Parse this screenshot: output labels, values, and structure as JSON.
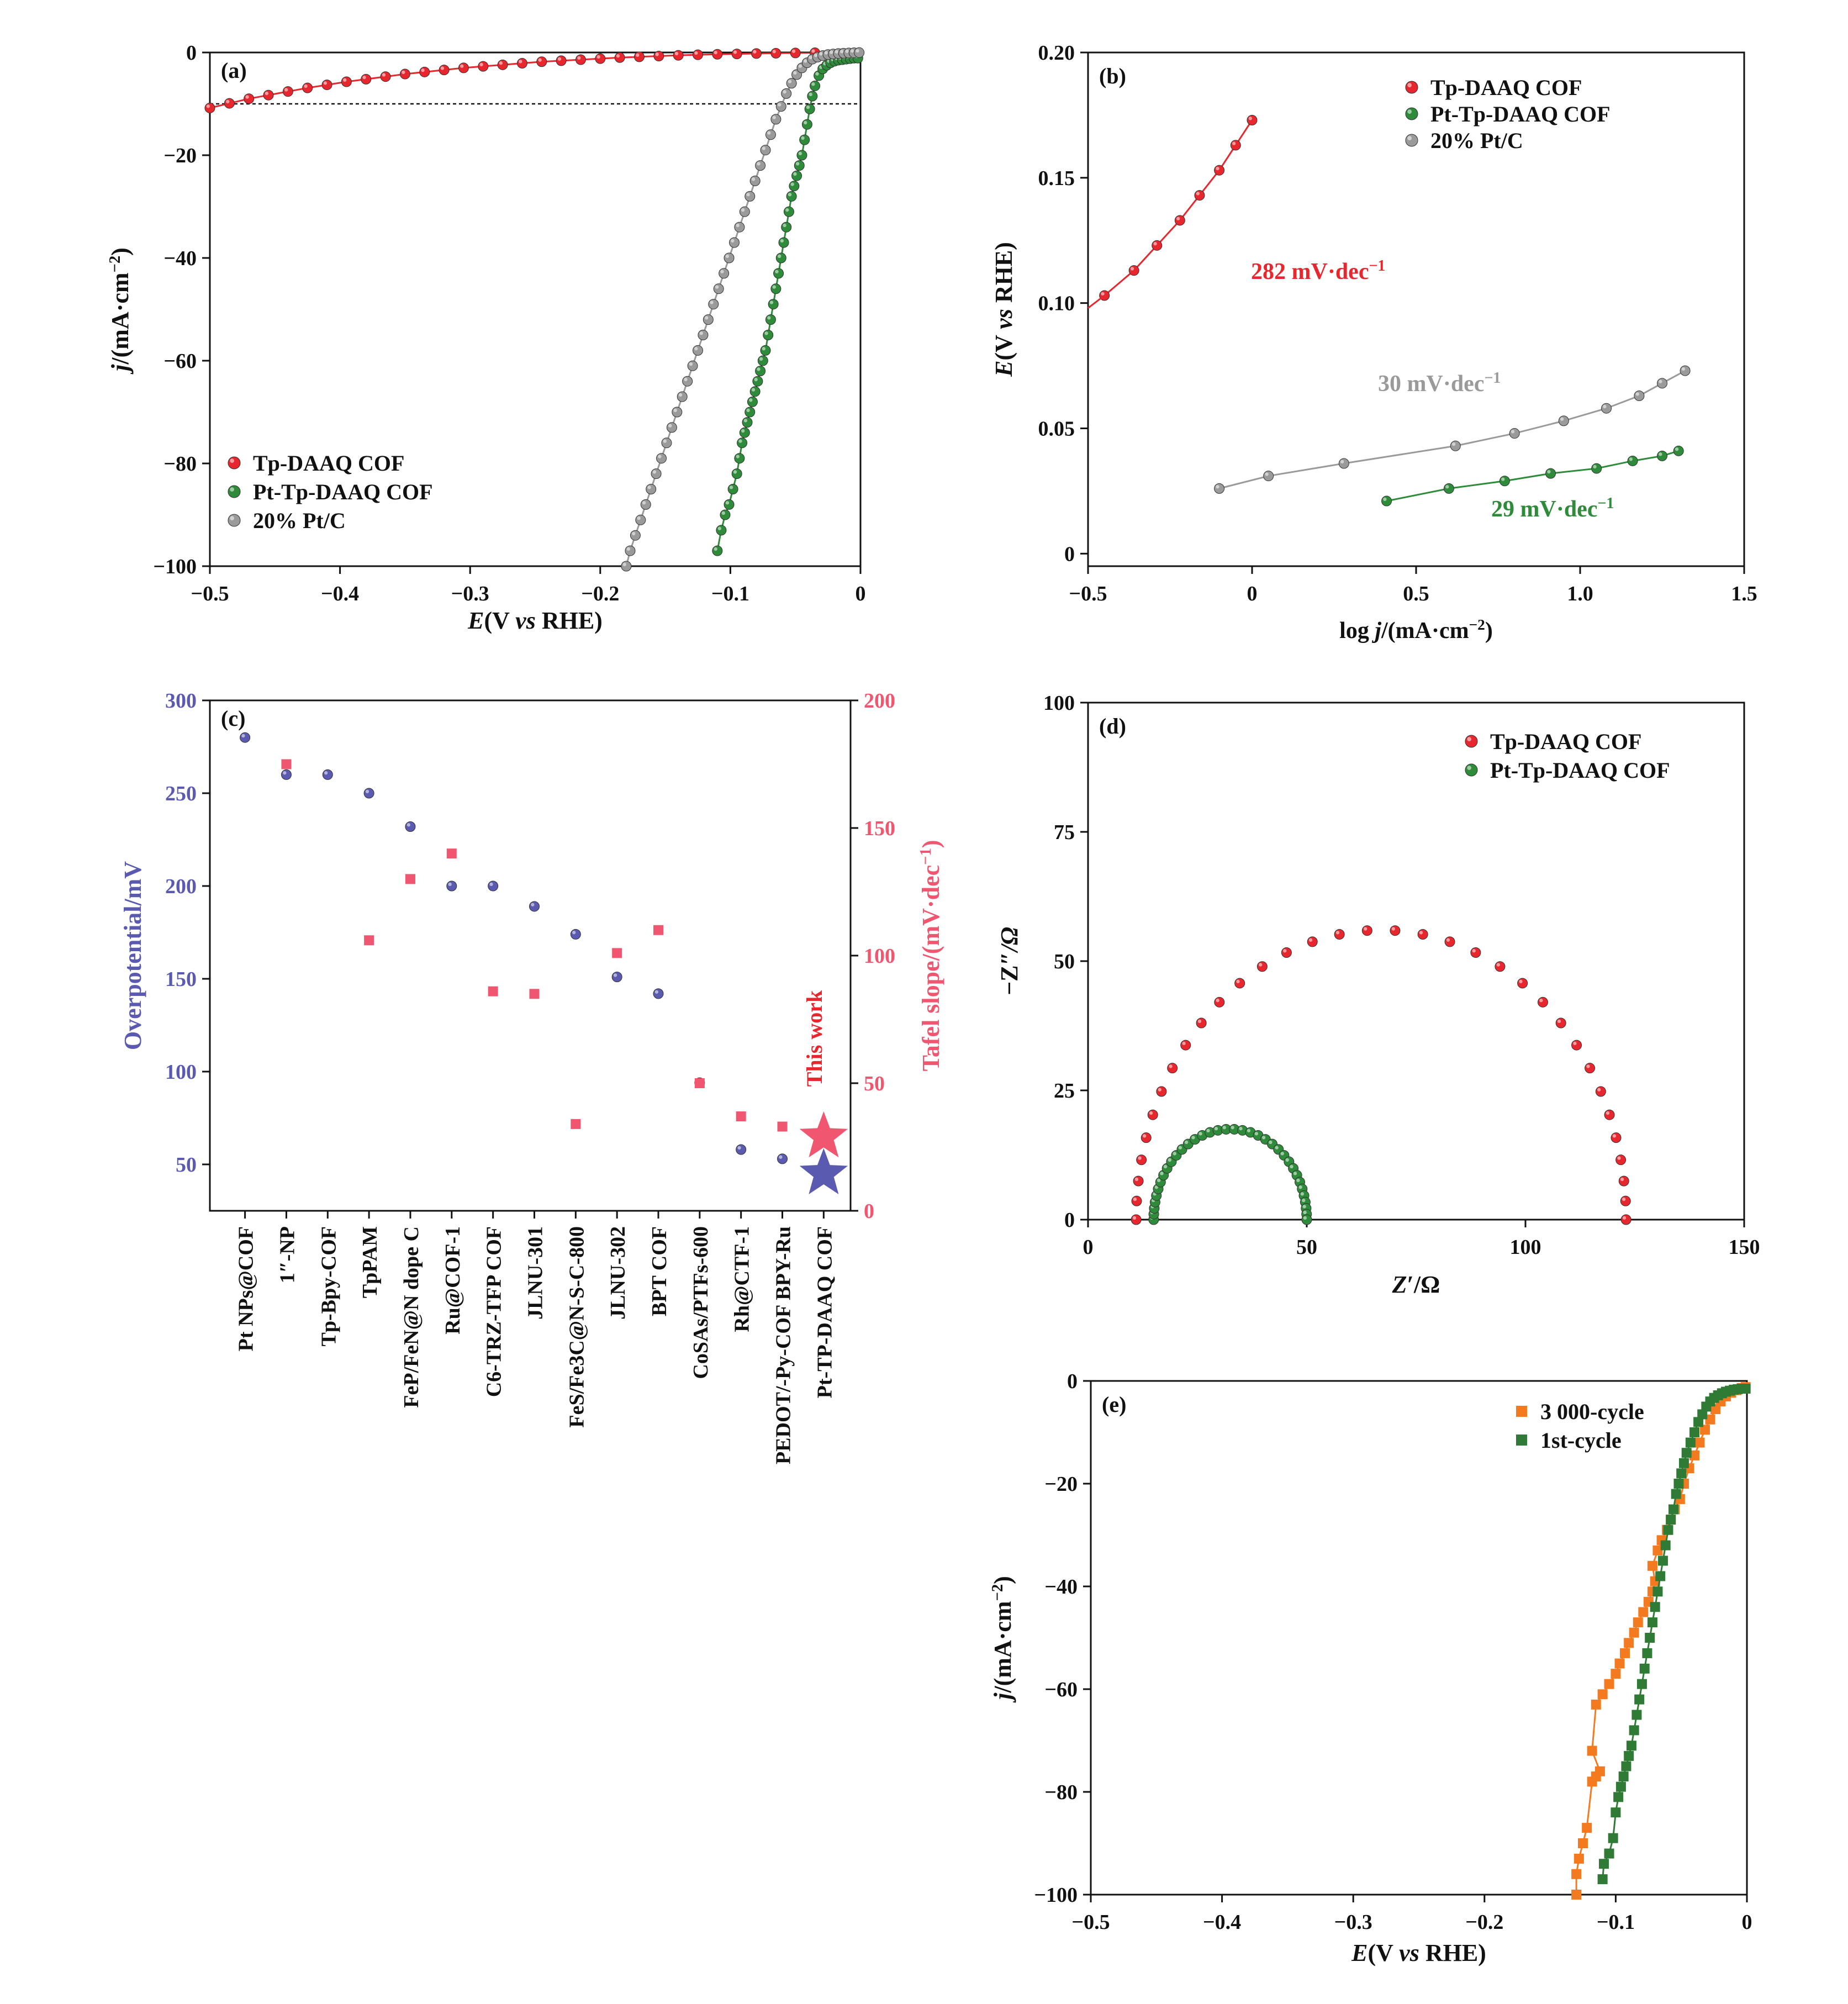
{
  "colors": {
    "red": "#e8262e",
    "green": "#2e8b3a",
    "gray": "#9a9a9a",
    "blue": "#5a5ab0",
    "pink": "#f0566f",
    "orange": "#f47a20",
    "darkgreen": "#2f7a34"
  },
  "chart_data": [
    {
      "panel": "(a)",
      "type": "line",
      "xlabel_parts": [
        "E",
        "(V ",
        "vs",
        " RHE)"
      ],
      "ylabel_parts": [
        "j",
        "/(mA·cm",
        "−2",
        ")"
      ],
      "xlim": [
        -0.5,
        0
      ],
      "ylim": [
        -100,
        0
      ],
      "xticks": [
        -0.5,
        -0.4,
        -0.3,
        -0.2,
        -0.1,
        0
      ],
      "xtick_labels": [
        "−0.5",
        "−0.4",
        "−0.3",
        "−0.2",
        "−0.1",
        "0"
      ],
      "yticks": [
        -100,
        -80,
        -60,
        -40,
        -20,
        0
      ],
      "ytick_labels": [
        "−100",
        "−80",
        "−60",
        "−40",
        "−20",
        "0"
      ],
      "reference_line_y": -10,
      "legend": [
        "Tp-DAAQ COF",
        "Pt-Tp-DAAQ COF",
        "20% Pt/C"
      ],
      "legend_position": "bottom-left",
      "series": [
        {
          "name": "Tp-DAAQ COF",
          "color": "red",
          "x": [
            -0.5,
            -0.485,
            -0.47,
            -0.455,
            -0.44,
            -0.425,
            -0.41,
            -0.395,
            -0.38,
            -0.365,
            -0.35,
            -0.335,
            -0.32,
            -0.305,
            -0.29,
            -0.275,
            -0.26,
            -0.245,
            -0.23,
            -0.215,
            -0.2,
            -0.185,
            -0.17,
            -0.155,
            -0.14,
            -0.125,
            -0.11,
            -0.095,
            -0.08,
            -0.065,
            -0.05,
            -0.035
          ],
          "y": [
            -10.8,
            -9.9,
            -9.0,
            -8.3,
            -7.6,
            -6.9,
            -6.3,
            -5.7,
            -5.2,
            -4.7,
            -4.2,
            -3.8,
            -3.4,
            -3.0,
            -2.7,
            -2.4,
            -2.1,
            -1.8,
            -1.6,
            -1.4,
            -1.2,
            -1.0,
            -0.85,
            -0.7,
            -0.55,
            -0.45,
            -0.35,
            -0.28,
            -0.2,
            -0.15,
            -0.1,
            -0.06
          ]
        },
        {
          "name": "Pt-Tp-DAAQ COF",
          "color": "green",
          "x": [
            -0.11,
            -0.107,
            -0.104,
            -0.101,
            -0.098,
            -0.095,
            -0.093,
            -0.091,
            -0.089,
            -0.087,
            -0.085,
            -0.083,
            -0.081,
            -0.079,
            -0.077,
            -0.075,
            -0.073,
            -0.071,
            -0.069,
            -0.067,
            -0.065,
            -0.063,
            -0.061,
            -0.059,
            -0.057,
            -0.055,
            -0.053,
            -0.051,
            -0.049,
            -0.047,
            -0.045,
            -0.043,
            -0.041,
            -0.039,
            -0.037,
            -0.035,
            -0.032,
            -0.029,
            -0.026,
            -0.023,
            -0.02,
            -0.017,
            -0.014,
            -0.011,
            -0.008,
            -0.005,
            -0.002
          ],
          "y": [
            -97,
            -93,
            -90,
            -88,
            -85,
            -82,
            -79,
            -76,
            -74,
            -72,
            -70,
            -68,
            -66,
            -64,
            -62,
            -60,
            -58,
            -55,
            -52,
            -49,
            -46,
            -43,
            -40,
            -37,
            -34,
            -31,
            -28,
            -26,
            -24,
            -22,
            -20,
            -17,
            -14,
            -11,
            -8.5,
            -6.5,
            -4.5,
            -3.2,
            -2.5,
            -2,
            -1.7,
            -1.5,
            -1.4,
            -1.3,
            -1.2,
            -1.1,
            -1.1
          ]
        },
        {
          "name": "20% Pt/C",
          "color": "gray",
          "x": [
            -0.18,
            -0.177,
            -0.173,
            -0.169,
            -0.165,
            -0.161,
            -0.157,
            -0.153,
            -0.149,
            -0.145,
            -0.141,
            -0.137,
            -0.133,
            -0.129,
            -0.125,
            -0.121,
            -0.117,
            -0.113,
            -0.109,
            -0.105,
            -0.101,
            -0.097,
            -0.093,
            -0.089,
            -0.085,
            -0.081,
            -0.077,
            -0.073,
            -0.069,
            -0.065,
            -0.061,
            -0.057,
            -0.053,
            -0.049,
            -0.045,
            -0.041,
            -0.037,
            -0.033,
            -0.029,
            -0.025,
            -0.021,
            -0.017,
            -0.013,
            -0.009,
            -0.005,
            -0.001
          ],
          "y": [
            -100,
            -97,
            -94,
            -91,
            -88,
            -85,
            -82,
            -79,
            -76,
            -73,
            -70,
            -67,
            -64,
            -61,
            -58,
            -55,
            -52,
            -49,
            -46,
            -43,
            -40,
            -37,
            -34,
            -31,
            -28,
            -25,
            -22,
            -19,
            -16,
            -13,
            -10.5,
            -8,
            -6,
            -4.3,
            -3,
            -2,
            -1.3,
            -0.9,
            -0.6,
            -0.4,
            -0.3,
            -0.2,
            -0.15,
            -0.1,
            -0.05,
            -0.02
          ]
        }
      ]
    },
    {
      "panel": "(b)",
      "type": "line",
      "xlabel_parts": [
        "log ",
        "j",
        "/(mA·cm",
        "−2",
        ")"
      ],
      "ylabel_parts": [
        "E",
        "(V ",
        "vs",
        " RHE)"
      ],
      "xlim": [
        -0.5,
        1.5
      ],
      "ylim": [
        -0.005,
        0.2
      ],
      "xticks": [
        -0.5,
        0,
        0.5,
        1.0,
        1.5
      ],
      "xtick_labels": [
        "−0.5",
        "0",
        "0.5",
        "1.0",
        "1.5"
      ],
      "yticks": [
        0,
        0.05,
        0.1,
        0.15,
        0.2
      ],
      "ytick_labels": [
        "0",
        "0.05",
        "0.10",
        "0.15",
        "0.20"
      ],
      "legend": [
        "Tp-DAAQ COF",
        "Pt-Tp-DAAQ COF",
        "20% Pt/C"
      ],
      "legend_position": "top-right",
      "annotations": [
        "282 mV·dec",
        "30 mV·dec",
        "29 mV·dec"
      ],
      "annotation_exponent": "−1",
      "series": [
        {
          "name": "Tp-DAAQ COF",
          "color": "red",
          "x": [
            -0.45,
            -0.36,
            -0.29,
            -0.22,
            -0.16,
            -0.1,
            -0.05,
            0.0
          ],
          "y": [
            0.103,
            0.113,
            0.123,
            0.133,
            0.143,
            0.153,
            0.163,
            0.173
          ]
        },
        {
          "name": "20% Pt/C",
          "color": "gray",
          "x": [
            -0.1,
            0.05,
            0.28,
            0.62,
            0.8,
            0.95,
            1.08,
            1.18,
            1.25,
            1.32
          ],
          "y": [
            0.026,
            0.031,
            0.036,
            0.043,
            0.048,
            0.053,
            0.058,
            0.063,
            0.068,
            0.073
          ]
        },
        {
          "name": "Pt-Tp-DAAQ COF",
          "color": "green",
          "x": [
            0.41,
            0.6,
            0.77,
            0.91,
            1.05,
            1.16,
            1.25,
            1.3
          ],
          "y": [
            0.021,
            0.026,
            0.029,
            0.032,
            0.034,
            0.037,
            0.039,
            0.041
          ]
        }
      ]
    },
    {
      "panel": "(c)",
      "type": "scatter",
      "ylabel_left": "Overpotential/mV",
      "ylabel_right_parts": [
        "Tafel slope/(mV·dec",
        "−1",
        ")"
      ],
      "ylim_left": [
        25,
        300
      ],
      "ylim_right": [
        0,
        200
      ],
      "yticks_left": [
        50,
        100,
        150,
        200,
        250,
        300
      ],
      "yticks_right": [
        0,
        50,
        100,
        150,
        200
      ],
      "categories": [
        "Pt NPs@COF",
        "1″-NP",
        "Tp-Bpy-COF",
        "TpPAM",
        "FeP/FeN@N dope C",
        "Ru@COF-1",
        "C6-TRZ-TFP COF",
        "JLNU-301",
        "FeS/Fe3C@N-S-C-800",
        "JLNU-302",
        "BPT COF",
        "CoSAs/PTFs-600",
        "Rh@CTF-1",
        "PEDOT/-Py-COF BPY-Ru",
        "Pt-TP-DAAQ COF"
      ],
      "annotation": "This work",
      "series": [
        {
          "name": "Overpotential",
          "axis": "left",
          "color": "blue",
          "values": [
            280,
            260,
            260,
            250,
            232,
            200,
            200,
            189,
            174,
            151,
            142,
            94,
            58,
            53,
            45
          ]
        },
        {
          "name": "Tafel slope",
          "axis": "right",
          "color": "pink",
          "values": [
            null,
            175,
            null,
            106,
            130,
            140,
            86,
            85,
            34,
            101,
            110,
            50,
            37,
            33,
            29
          ]
        }
      ]
    },
    {
      "panel": "(d)",
      "type": "scatter",
      "xlabel_parts": [
        "Z",
        "′/Ω"
      ],
      "ylabel_parts": [
        "−Z",
        "″/Ω"
      ],
      "xlim": [
        0,
        150
      ],
      "ylim": [
        0,
        100
      ],
      "xticks": [
        0,
        50,
        100,
        150
      ],
      "yticks": [
        0,
        25,
        50,
        75,
        100
      ],
      "legend": [
        "Tp-DAAQ COF",
        "Pt-Tp-DAAQ COF"
      ],
      "legend_position": "top-right",
      "series": [
        {
          "name": "Tp-DAAQ COF",
          "color": "red",
          "semicircle": {
            "x0": 11,
            "x1": 123,
            "peak": 56
          },
          "count": 34
        },
        {
          "name": "Pt-Tp-DAAQ COF",
          "color": "green",
          "semicircle": {
            "x0": 15,
            "x1": 50,
            "peak": 17.5
          },
          "count": 36
        }
      ]
    },
    {
      "panel": "(e)",
      "type": "line",
      "xlabel_parts": [
        "E",
        "(V ",
        "vs",
        " RHE)"
      ],
      "ylabel_parts": [
        "j",
        "/(mA·cm",
        "−2",
        ")"
      ],
      "xlim": [
        -0.5,
        0
      ],
      "ylim": [
        -100,
        0
      ],
      "xticks": [
        -0.5,
        -0.4,
        -0.3,
        -0.2,
        -0.1,
        0
      ],
      "xtick_labels": [
        "−0.5",
        "−0.4",
        "−0.3",
        "−0.2",
        "−0.1",
        "0"
      ],
      "yticks": [
        -100,
        -80,
        -60,
        -40,
        -20,
        0
      ],
      "ytick_labels": [
        "−100",
        "−80",
        "−60",
        "−40",
        "−20",
        "0"
      ],
      "legend": [
        "3 000-cycle",
        "1st-cycle"
      ],
      "legend_position": "top-right",
      "series": [
        {
          "name": "3 000-cycle",
          "color": "orange",
          "x": [
            -0.13,
            -0.13,
            -0.128,
            -0.125,
            -0.122,
            -0.118,
            -0.115,
            -0.112,
            -0.118,
            -0.115,
            -0.11,
            -0.105,
            -0.1,
            -0.097,
            -0.093,
            -0.09,
            -0.086,
            -0.083,
            -0.079,
            -0.075,
            -0.072,
            -0.07,
            -0.072,
            -0.068,
            -0.065,
            -0.061,
            -0.058,
            -0.055,
            -0.051,
            -0.048,
            -0.044,
            -0.04,
            -0.036,
            -0.032,
            -0.028,
            -0.024,
            -0.02,
            -0.016,
            -0.012,
            -0.008,
            -0.004,
            -0.001
          ],
          "y": [
            -100,
            -96,
            -93,
            -90,
            -87,
            -78,
            -77,
            -76,
            -72,
            -63,
            -61,
            -59,
            -57,
            -55,
            -53,
            -51,
            -49,
            -47,
            -45,
            -43,
            -41,
            -39,
            -36,
            -33,
            -31,
            -29,
            -27,
            -25,
            -23,
            -20,
            -17,
            -14.5,
            -12,
            -9.5,
            -7.5,
            -5.5,
            -4,
            -3,
            -2.3,
            -1.8,
            -1.4,
            -1.2
          ]
        },
        {
          "name": "1st-cycle",
          "color": "darkgreen",
          "x": [
            -0.11,
            -0.109,
            -0.105,
            -0.102,
            -0.1,
            -0.098,
            -0.096,
            -0.094,
            -0.092,
            -0.09,
            -0.088,
            -0.086,
            -0.084,
            -0.082,
            -0.08,
            -0.078,
            -0.076,
            -0.074,
            -0.072,
            -0.07,
            -0.068,
            -0.066,
            -0.064,
            -0.062,
            -0.06,
            -0.058,
            -0.056,
            -0.054,
            -0.052,
            -0.05,
            -0.048,
            -0.046,
            -0.043,
            -0.04,
            -0.037,
            -0.034,
            -0.031,
            -0.028,
            -0.025,
            -0.022,
            -0.019,
            -0.016,
            -0.013,
            -0.01,
            -0.007,
            -0.004,
            -0.001
          ],
          "y": [
            -97,
            -94,
            -92,
            -89,
            -84,
            -81,
            -79,
            -77,
            -75,
            -73,
            -71,
            -68,
            -65,
            -62,
            -59,
            -56,
            -53,
            -50,
            -47,
            -44,
            -41,
            -38,
            -35,
            -32,
            -29,
            -27,
            -25,
            -22,
            -20,
            -18,
            -16,
            -14,
            -12,
            -10,
            -8,
            -6.5,
            -5,
            -4,
            -3.3,
            -2.8,
            -2.4,
            -2.1,
            -1.9,
            -1.7,
            -1.6,
            -1.5,
            -1.5
          ]
        }
      ]
    }
  ]
}
